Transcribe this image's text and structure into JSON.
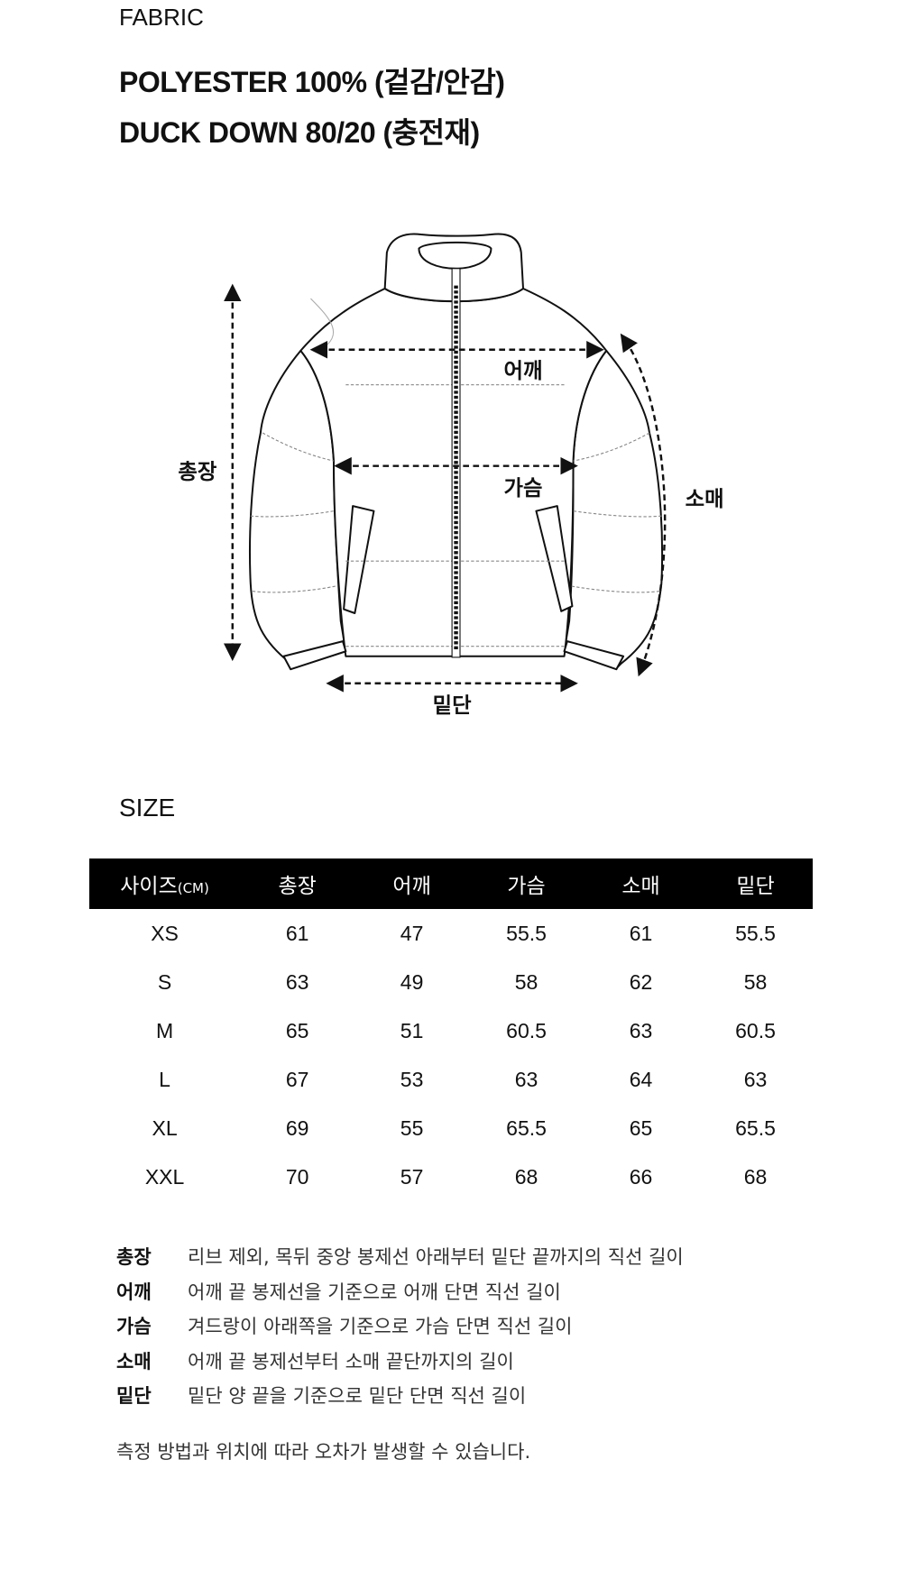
{
  "fabric": {
    "label": "FABRIC",
    "lines": [
      "POLYESTER 100% (겉감/안감)",
      "DUCK DOWN 80/20 (충전재)"
    ]
  },
  "diagram": {
    "labels": {
      "total_length": "총장",
      "shoulder": "어깨",
      "chest": "가슴",
      "sleeve": "소매",
      "hem": "밑단"
    }
  },
  "size": {
    "label": "SIZE",
    "headers": [
      "사이즈",
      "총장",
      "어깨",
      "가슴",
      "소매",
      "밑단"
    ],
    "unit": "(CM)",
    "rows": [
      [
        "XS",
        "61",
        "47",
        "55.5",
        "61",
        "55.5"
      ],
      [
        "S",
        "63",
        "49",
        "58",
        "62",
        "58"
      ],
      [
        "M",
        "65",
        "51",
        "60.5",
        "63",
        "60.5"
      ],
      [
        "L",
        "67",
        "53",
        "63",
        "64",
        "63"
      ],
      [
        "XL",
        "69",
        "55",
        "65.5",
        "65",
        "65.5"
      ],
      [
        "XXL",
        "70",
        "57",
        "68",
        "66",
        "68"
      ]
    ]
  },
  "legend": [
    {
      "term": "총장",
      "desc": "리브 제외, 목뒤 중앙 봉제선 아래부터 밑단 끝까지의 직선 길이"
    },
    {
      "term": "어깨",
      "desc": "어깨 끝 봉제선을 기준으로 어깨 단면 직선 길이"
    },
    {
      "term": "가슴",
      "desc": "겨드랑이 아래쪽을 기준으로 가슴 단면 직선 길이"
    },
    {
      "term": "소매",
      "desc": "어깨 끝 봉제선부터 소매 끝단까지의 길이"
    },
    {
      "term": "밑단",
      "desc": "밑단 양 끝을 기준으로 밑단 단면 직선 길이"
    }
  ],
  "note": "측정 방법과 위치에 따라 오차가 발생할 수 있습니다."
}
